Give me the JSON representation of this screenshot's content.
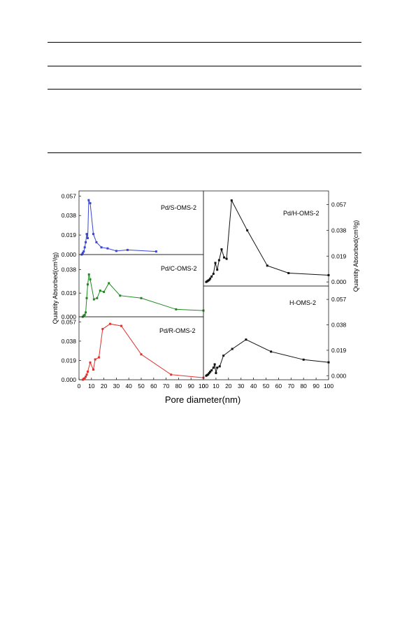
{
  "page": {
    "rules": [
      "r1",
      "r2",
      "r3",
      "r4"
    ]
  },
  "figure": {
    "xlabel": "Pore diameter(nm)",
    "ylabel_left": "Quantity Absorbed(cm³/g)",
    "ylabel_right": "Quantity Absorbed(cm³/g)"
  },
  "chart_data": [
    {
      "type": "line",
      "panel": "left-top",
      "annotation": "Pd/S-OMS-2",
      "color": "#3a45d6",
      "xlim": [
        0,
        100
      ],
      "ylim": [
        0,
        0.062
      ],
      "yticks": [
        "0.000",
        "0.019",
        "0.038",
        "0.057"
      ],
      "series": [
        {
          "x": [
            2.2,
            3.0,
            3.8,
            4.6,
            5.4,
            6.2,
            7.0,
            7.8,
            9.0,
            11.5,
            14.0,
            18.0,
            23.0,
            30.0,
            39.0,
            62.0
          ],
          "y": [
            0.0,
            0.0015,
            0.003,
            0.007,
            0.012,
            0.02,
            0.016,
            0.053,
            0.05,
            0.02,
            0.012,
            0.007,
            0.006,
            0.0035,
            0.0045,
            0.003
          ]
        }
      ]
    },
    {
      "type": "line",
      "panel": "left-middle",
      "annotation": "Pd/C-OMS-2",
      "color": "#1e8a1e",
      "xlim": [
        0,
        100
      ],
      "ylim": [
        0,
        0.05
      ],
      "yticks": [
        "0.000",
        "0.019",
        "0.038"
      ],
      "series": [
        {
          "x": [
            3.0,
            3.8,
            4.6,
            5.4,
            6.2,
            7.0,
            8.0,
            9.0,
            12.0,
            14.5,
            17.0,
            20.0,
            24.0,
            33.0,
            50.0,
            78.0,
            100.0
          ],
          "y": [
            0.0,
            0.001,
            0.0015,
            0.0035,
            0.015,
            0.026,
            0.034,
            0.03,
            0.014,
            0.015,
            0.021,
            0.02,
            0.027,
            0.017,
            0.015,
            0.006,
            0.005
          ]
        }
      ]
    },
    {
      "type": "line",
      "panel": "left-bottom",
      "annotation": "Pd/R-OMS-2",
      "color": "#e0312c",
      "xlim": [
        0,
        100
      ],
      "ylim": [
        0,
        0.062
      ],
      "yticks": [
        "0.000",
        "0.019",
        "0.038",
        "0.057"
      ],
      "series": [
        {
          "x": [
            3.0,
            3.8,
            4.6,
            5.4,
            6.2,
            7.0,
            9.0,
            11.5,
            13.0,
            16.0,
            19.0,
            25.0,
            34.0,
            50.0,
            74.0,
            100.0
          ],
          "y": [
            0.0,
            0.001,
            0.0015,
            0.003,
            0.005,
            0.008,
            0.017,
            0.01,
            0.02,
            0.022,
            0.05,
            0.055,
            0.053,
            0.025,
            0.005,
            0.002
          ]
        }
      ]
    },
    {
      "type": "line",
      "panel": "right-top",
      "annotation": "Pd/H-OMS-2",
      "color": "#111111",
      "xlim": [
        0,
        100
      ],
      "ylim": [
        -0.003,
        0.067
      ],
      "yticks": [
        "0.000",
        "0.019",
        "0.038",
        "0.057"
      ],
      "series": [
        {
          "x": [
            2.2,
            3.0,
            3.8,
            4.6,
            5.4,
            6.5,
            8.0,
            9.5,
            11.0,
            12.5,
            14.5,
            16.5,
            18.5,
            22.5,
            35.0,
            51.0,
            68.0,
            100.0
          ],
          "y": [
            0.0,
            0.0005,
            0.001,
            0.0015,
            0.0025,
            0.004,
            0.006,
            0.014,
            0.009,
            0.016,
            0.024,
            0.018,
            0.017,
            0.06,
            0.038,
            0.012,
            0.0065,
            0.005
          ]
        }
      ]
    },
    {
      "type": "line",
      "panel": "right-bottom",
      "annotation": "H-OMS-2",
      "color": "#111111",
      "xlim": [
        0,
        100
      ],
      "ylim": [
        -0.003,
        0.067
      ],
      "yticks": [
        "0.000",
        "0.019",
        "0.038",
        "0.057"
      ],
      "series": [
        {
          "x": [
            2.2,
            3.0,
            3.8,
            4.6,
            5.4,
            6.5,
            8.0,
            9.0,
            10.0,
            11.0,
            13.0,
            16.0,
            23.0,
            34.0,
            54.0,
            80.0,
            100.0
          ],
          "y": [
            0.0,
            0.0005,
            0.001,
            0.002,
            0.003,
            0.004,
            0.006,
            0.0085,
            0.002,
            0.006,
            0.007,
            0.015,
            0.02,
            0.027,
            0.018,
            0.012,
            0.01
          ]
        }
      ]
    }
  ],
  "xticks": [
    "0",
    "10",
    "20",
    "30",
    "40",
    "50",
    "60",
    "70",
    "80",
    "90",
    "100"
  ]
}
